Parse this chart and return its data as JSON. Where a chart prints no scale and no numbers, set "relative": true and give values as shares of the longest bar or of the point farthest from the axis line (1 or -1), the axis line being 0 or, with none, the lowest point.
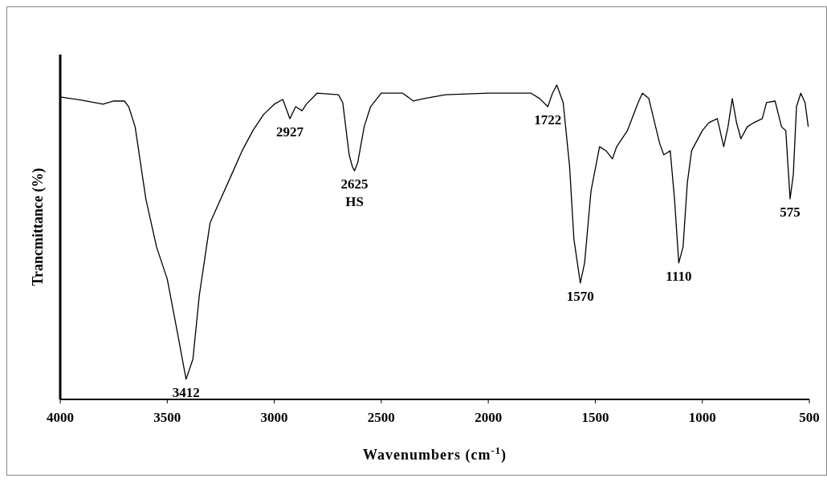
{
  "chart_data": {
    "type": "line",
    "relative": true,
    "xlabel": "Wavenumbers (cm$^{-1}$)",
    "ylabel": "Trancmittance (%)",
    "xlim": [
      4000,
      500
    ],
    "xticks": [
      4000,
      3500,
      3000,
      2500,
      2000,
      1500,
      1000,
      500
    ],
    "tick_labels": "x",
    "grid": false,
    "marker": "none",
    "line_style": "solid",
    "series": [
      {
        "color": "#000000",
        "x": [
          4000,
          3900,
          3800,
          3750,
          3700,
          3680,
          3650,
          3600,
          3550,
          3500,
          3450,
          3412,
          3380,
          3350,
          3300,
          3250,
          3200,
          3150,
          3100,
          3050,
          3000,
          2960,
          2927,
          2900,
          2870,
          2850,
          2800,
          2700,
          2680,
          2650,
          2635,
          2625,
          2610,
          2580,
          2550,
          2500,
          2400,
          2350,
          2300,
          2200,
          2000,
          1800,
          1760,
          1722,
          1700,
          1680,
          1650,
          1620,
          1600,
          1570,
          1550,
          1520,
          1480,
          1450,
          1420,
          1400,
          1350,
          1300,
          1280,
          1250,
          1200,
          1180,
          1150,
          1130,
          1110,
          1090,
          1070,
          1050,
          1000,
          970,
          930,
          900,
          880,
          860,
          840,
          820,
          790,
          760,
          720,
          700,
          660,
          630,
          610,
          590,
          575,
          560,
          540,
          520,
          505
        ],
        "values": [
          0.962,
          0.952,
          0.939,
          0.949,
          0.949,
          0.931,
          0.867,
          0.638,
          0.485,
          0.383,
          0.204,
          0.064,
          0.128,
          0.332,
          0.561,
          0.638,
          0.714,
          0.791,
          0.855,
          0.906,
          0.939,
          0.954,
          0.893,
          0.931,
          0.918,
          0.939,
          0.974,
          0.969,
          0.944,
          0.778,
          0.74,
          0.727,
          0.753,
          0.867,
          0.931,
          0.974,
          0.974,
          0.949,
          0.957,
          0.969,
          0.974,
          0.974,
          0.957,
          0.931,
          0.974,
          1,
          0.944,
          0.74,
          0.51,
          0.37,
          0.434,
          0.663,
          0.804,
          0.791,
          0.765,
          0.804,
          0.855,
          0.944,
          0.974,
          0.957,
          0.816,
          0.778,
          0.791,
          0.638,
          0.434,
          0.485,
          0.689,
          0.791,
          0.855,
          0.88,
          0.893,
          0.804,
          0.867,
          0.957,
          0.88,
          0.829,
          0.867,
          0.88,
          0.893,
          0.944,
          0.949,
          0.867,
          0.855,
          0.638,
          0.714,
          0.931,
          0.974,
          0.944,
          0.867
        ]
      }
    ],
    "annotations": [
      {
        "text": "3412",
        "x": 3412,
        "y": 0.064
      },
      {
        "text": "2927",
        "x": 2927,
        "y": 0.893
      },
      {
        "text": "2625 HS",
        "x": 2625,
        "y": 0.727
      },
      {
        "text": "1722",
        "x": 1722,
        "y": 0.931
      },
      {
        "text": "1570",
        "x": 1570,
        "y": 0.37
      },
      {
        "text": "1110",
        "x": 1110,
        "y": 0.434
      },
      {
        "text": "575",
        "x": 590,
        "y": 0.638
      }
    ]
  }
}
